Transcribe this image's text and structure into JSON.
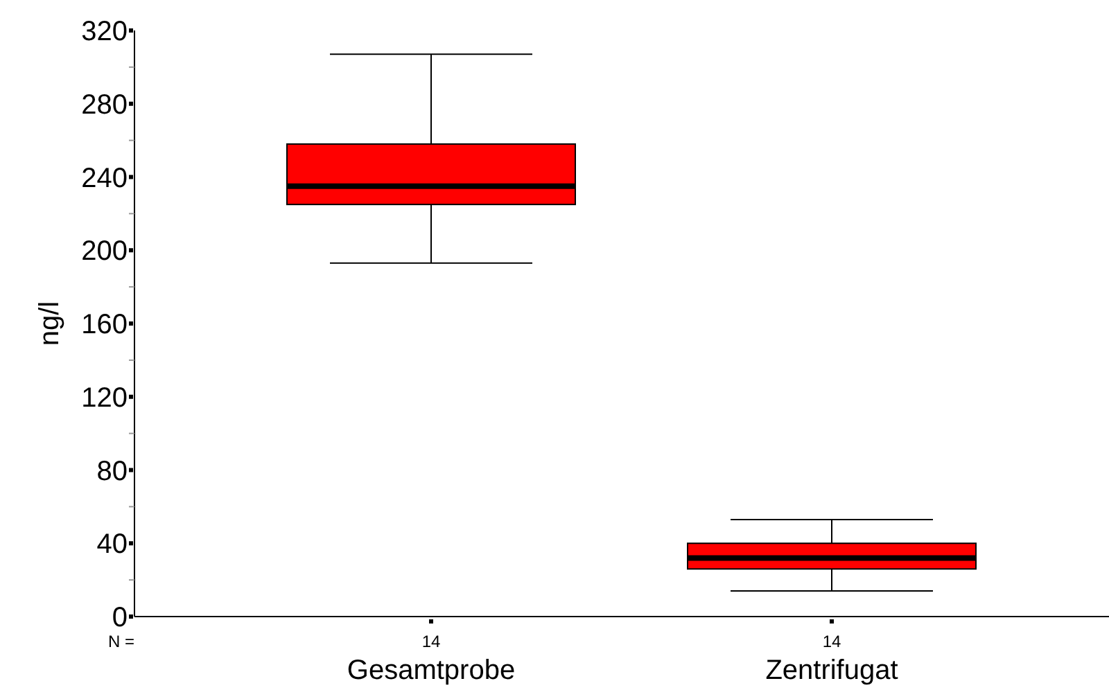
{
  "chart_data": {
    "type": "box",
    "ylabel": "ng/l",
    "categories": [
      "Gesamtprobe",
      "Zentrifugat"
    ],
    "boxes": [
      {
        "low": 193,
        "q1": 225,
        "median": 235,
        "q3": 258,
        "high": 307
      },
      {
        "low": 14,
        "q1": 26,
        "median": 32,
        "q3": 40,
        "high": 53
      }
    ],
    "color": "#ff0000",
    "ylim": [
      0,
      320
    ],
    "yticks": [
      0,
      {
        "value": 20,
        "label": null
      },
      40,
      {
        "value": 60,
        "label": null
      },
      80,
      {
        "value": 100,
        "label": null
      },
      120,
      {
        "value": 140,
        "label": null
      },
      160,
      {
        "value": 180,
        "label": null
      },
      200,
      {
        "value": 220,
        "label": null
      },
      240,
      {
        "value": 260,
        "label": null
      },
      280,
      {
        "value": 300,
        "label": null
      },
      320
    ],
    "annotations": [
      "N =",
      "14",
      "14"
    ],
    "grid": false
  }
}
